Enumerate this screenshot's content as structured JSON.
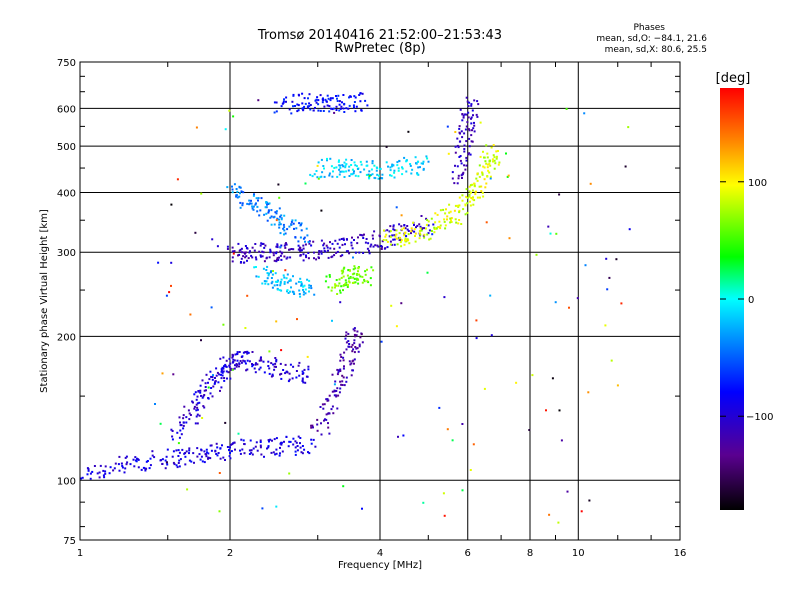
{
  "header": {
    "title_line1": "Tromsø 20140416 21:52:00–21:53:43",
    "title_line2": "RwPretec (8p)",
    "phases_title": "Phases",
    "phases_o": "mean, sd,O: −84.1, 21.6",
    "phases_x": "mean, sd,X: 80.6, 25.5"
  },
  "colorbar": {
    "unit_label": "[deg]",
    "ticks": [
      "100",
      "0",
      "−100"
    ],
    "tick_values": [
      100,
      0,
      -100
    ],
    "range": [
      -180,
      180
    ]
  },
  "chart_data": {
    "type": "scatter",
    "xlabel": "Frequency [MHz]",
    "ylabel": "Stationary phase Virtual Height [km]",
    "xscale": "log",
    "yscale": "log",
    "xlim": [
      1,
      16
    ],
    "ylim": [
      75,
      750
    ],
    "x_ticks": [
      1,
      2,
      4,
      6,
      8,
      10,
      16
    ],
    "x_tick_labels": [
      "1",
      "2",
      "4",
      "6",
      "8",
      "10",
      "16"
    ],
    "y_ticks": [
      75,
      100,
      200,
      300,
      400,
      500,
      600,
      750
    ],
    "y_tick_labels": [
      "75",
      "100",
      "200",
      "300",
      "400",
      "500",
      "600",
      "750"
    ],
    "grid": true,
    "color_encoding": "phase (deg)",
    "colors": {
      "grid": "#000000",
      "colorbar_stops": [
        "#000000",
        "#5a0090",
        "#0000ff",
        "#00a0ff",
        "#00ffff",
        "#00ff00",
        "#ffff00",
        "#ff8000",
        "#ff0000"
      ]
    },
    "traces": [
      {
        "name_hint": "E-region trace",
        "x": [
          1.0,
          1.2,
          1.4,
          1.6,
          1.8,
          2.0,
          2.3,
          2.6,
          2.9
        ],
        "y": [
          103,
          107,
          110,
          112,
          114,
          116,
          117,
          118,
          119
        ],
        "phase": -95
      },
      {
        "x": [
          1.55,
          1.7,
          1.8,
          1.9,
          2.0,
          2.1,
          2.3,
          2.6,
          2.9
        ],
        "y": [
          125,
          140,
          155,
          165,
          175,
          180,
          175,
          170,
          165
        ],
        "phase": -100
      },
      {
        "x": [
          3.0,
          3.2,
          3.4,
          3.5,
          3.6
        ],
        "y": [
          125,
          145,
          170,
          190,
          205
        ],
        "phase": -120
      },
      {
        "x": [
          2.0,
          2.2,
          2.4,
          2.6,
          2.9,
          3.2,
          3.6,
          4.0,
          4.5,
          5.0
        ],
        "y": [
          295,
          300,
          300,
          300,
          302,
          305,
          310,
          318,
          330,
          345
        ],
        "phase": -110
      },
      {
        "x": [
          2.0,
          2.2,
          2.4,
          2.6,
          2.8
        ],
        "y": [
          400,
          380,
          360,
          340,
          320
        ],
        "phase": -40
      },
      {
        "x": [
          2.3,
          2.5,
          2.7,
          2.9
        ],
        "y": [
          270,
          260,
          255,
          250
        ],
        "phase": -20
      },
      {
        "x": [
          3.2,
          3.4,
          3.6,
          3.8
        ],
        "y": [
          255,
          265,
          270,
          265
        ],
        "phase": 60
      },
      {
        "x": [
          4.2,
          4.5,
          5.0,
          5.5,
          6.0,
          6.3,
          6.6,
          6.8
        ],
        "y": [
          320,
          325,
          335,
          355,
          380,
          420,
          460,
          490
        ],
        "phase": 90
      },
      {
        "x": [
          3.0,
          3.3,
          3.6,
          4.0,
          4.5,
          5.0
        ],
        "y": [
          450,
          450,
          450,
          445,
          450,
          460
        ],
        "phase": -15
      },
      {
        "x": [
          5.8,
          5.9,
          6.0,
          6.1
        ],
        "y": [
          420,
          500,
          560,
          620
        ],
        "phase": -110
      },
      {
        "x": [
          2.5,
          2.8,
          3.1,
          3.4,
          3.7
        ],
        "y": [
          610,
          620,
          615,
          610,
          620
        ],
        "phase": -80
      }
    ]
  }
}
